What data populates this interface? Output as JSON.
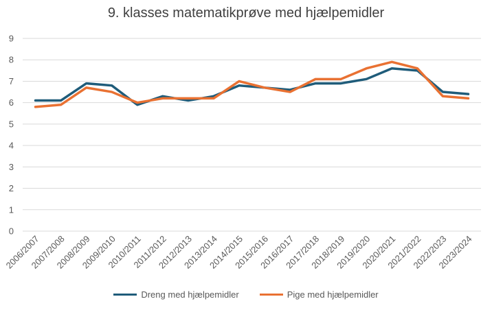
{
  "chart_data": {
    "type": "line",
    "title": "9. klasses matematikprøve med hjælpemidler",
    "xlabel": "",
    "ylabel": "",
    "categories": [
      "2006/2007",
      "2007/2008",
      "2008/2009",
      "2009/2010",
      "2010/2011",
      "2011/2012",
      "2012/2013",
      "2013/2014",
      "2014/2015",
      "2015/2016",
      "2016/2017",
      "2017/2018",
      "2018/2019",
      "2019/2020",
      "2020/2021",
      "2021/2022",
      "2022/2023",
      "2023/2024"
    ],
    "ylim": [
      0,
      9
    ],
    "yticks": [
      "0",
      "1",
      "2",
      "3",
      "4",
      "5",
      "6",
      "7",
      "8",
      "9"
    ],
    "grid": true,
    "legend_position": "bottom",
    "series": [
      {
        "name": "Dreng med hjælpemidler",
        "color": "#1F5C7A",
        "values": [
          6.1,
          6.1,
          6.9,
          6.8,
          5.9,
          6.3,
          6.1,
          6.3,
          6.8,
          6.7,
          6.6,
          6.9,
          6.9,
          7.1,
          7.6,
          7.5,
          6.5,
          6.4
        ]
      },
      {
        "name": "Pige med hjælpemidler",
        "color": "#E97132",
        "values": [
          5.8,
          5.9,
          6.7,
          6.5,
          6.0,
          6.2,
          6.2,
          6.2,
          7.0,
          6.7,
          6.5,
          7.1,
          7.1,
          7.6,
          7.9,
          7.6,
          6.3,
          6.2
        ]
      }
    ]
  }
}
